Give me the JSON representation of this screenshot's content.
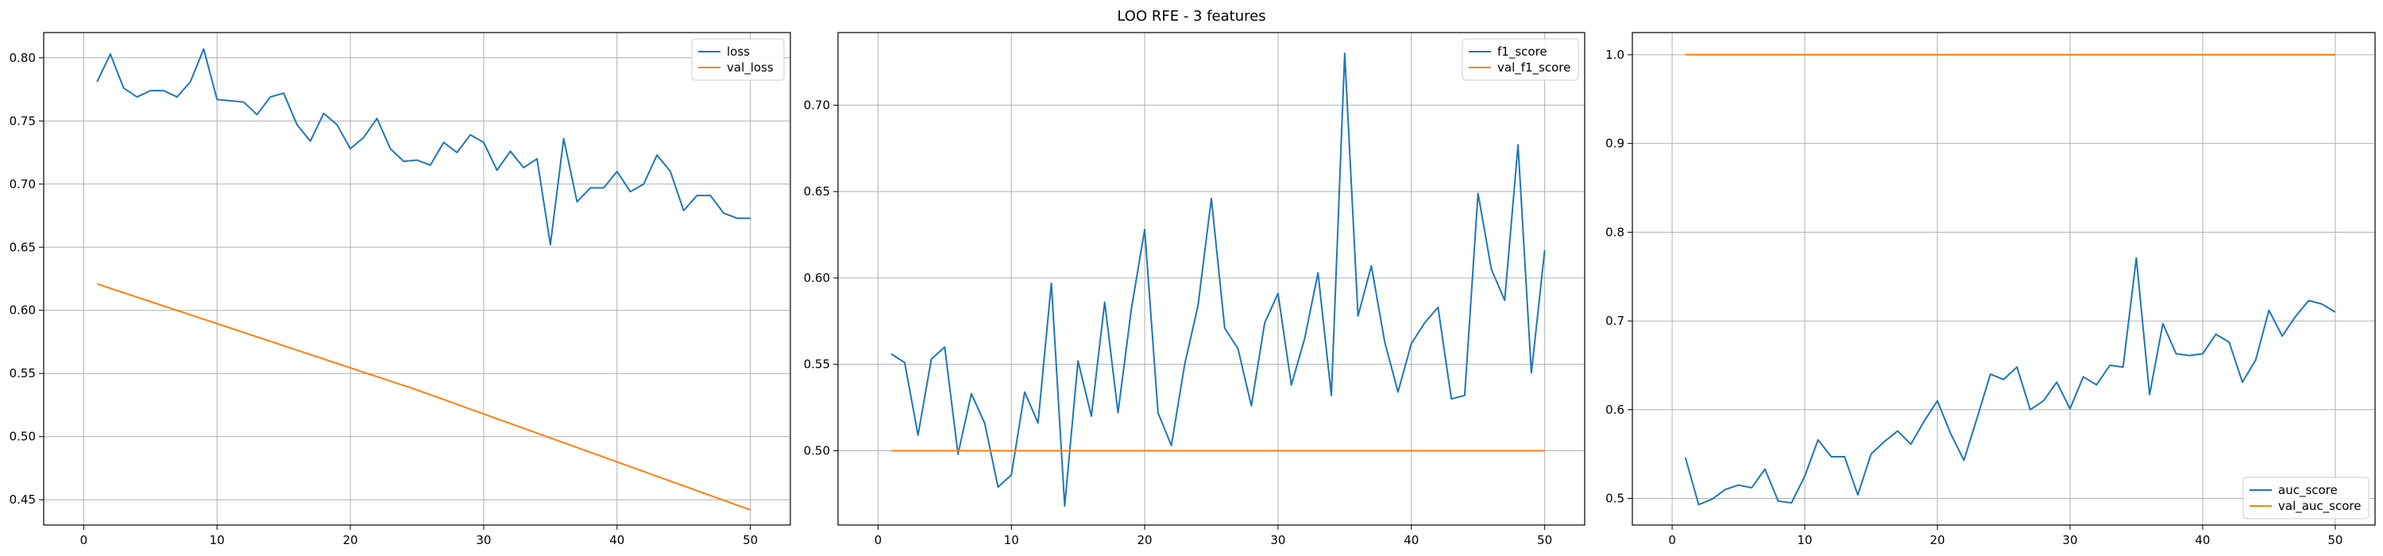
{
  "title": "LOO RFE - 3 features",
  "colors": {
    "train": "#1f77b4",
    "val": "#ff7f0e",
    "grid": "#b0b0b0"
  },
  "chart_data": [
    {
      "type": "line",
      "xlim": [
        -3,
        53
      ],
      "ylim": [
        0.43,
        0.82
      ],
      "xticks": [
        0,
        10,
        20,
        30,
        40,
        50
      ],
      "yticks": [
        0.45,
        0.5,
        0.55,
        0.6,
        0.65,
        0.7,
        0.75,
        0.8
      ],
      "grid": true,
      "legend_position": "upper right",
      "series": [
        {
          "name": "loss",
          "color": "#1f77b4",
          "x": [
            1,
            2,
            3,
            4,
            5,
            6,
            7,
            8,
            9,
            10,
            11,
            12,
            13,
            14,
            15,
            16,
            17,
            18,
            19,
            20,
            21,
            22,
            23,
            24,
            25,
            26,
            27,
            28,
            29,
            30,
            31,
            32,
            33,
            34,
            35,
            36,
            37,
            38,
            39,
            40,
            41,
            42,
            43,
            44,
            45,
            46,
            47,
            48,
            49,
            50
          ],
          "y": [
            0.781,
            0.803,
            0.776,
            0.769,
            0.774,
            0.774,
            0.769,
            0.781,
            0.807,
            0.767,
            0.766,
            0.765,
            0.755,
            0.769,
            0.772,
            0.747,
            0.734,
            0.756,
            0.747,
            0.728,
            0.737,
            0.752,
            0.728,
            0.718,
            0.719,
            0.715,
            0.733,
            0.725,
            0.739,
            0.733,
            0.711,
            0.726,
            0.713,
            0.72,
            0.652,
            0.736,
            0.686,
            0.697,
            0.697,
            0.71,
            0.694,
            0.7,
            0.723,
            0.71,
            0.679,
            0.691,
            0.691,
            0.677,
            0.673,
            0.673
          ]
        },
        {
          "name": "val_loss",
          "color": "#ff7f0e",
          "x": [
            1,
            2,
            3,
            4,
            5,
            6,
            7,
            8,
            9,
            10,
            11,
            12,
            13,
            14,
            15,
            16,
            17,
            18,
            19,
            20,
            21,
            22,
            23,
            24,
            25,
            26,
            27,
            28,
            29,
            30,
            31,
            32,
            33,
            34,
            35,
            36,
            37,
            38,
            39,
            40,
            41,
            42,
            43,
            44,
            45,
            46,
            47,
            48,
            49,
            50
          ],
          "y": [
            0.621,
            0.6175,
            0.614,
            0.6105,
            0.607,
            0.6035,
            0.6,
            0.5965,
            0.593,
            0.5895,
            0.586,
            0.5825,
            0.579,
            0.5755,
            0.572,
            0.5685,
            0.565,
            0.5615,
            0.558,
            0.5545,
            0.551,
            0.5475,
            0.544,
            0.5405,
            0.537,
            0.5332,
            0.5294,
            0.5256,
            0.5218,
            0.518,
            0.5142,
            0.5104,
            0.5066,
            0.5028,
            0.499,
            0.4952,
            0.4914,
            0.4876,
            0.4838,
            0.48,
            0.4762,
            0.4724,
            0.4686,
            0.4648,
            0.461,
            0.4572,
            0.4534,
            0.4496,
            0.4458,
            0.442
          ]
        }
      ]
    },
    {
      "type": "line",
      "xlim": [
        -3,
        53
      ],
      "ylim": [
        0.457,
        0.742
      ],
      "xticks": [
        0,
        10,
        20,
        30,
        40,
        50
      ],
      "yticks": [
        0.5,
        0.55,
        0.6,
        0.65,
        0.7
      ],
      "grid": true,
      "legend_position": "upper right",
      "series": [
        {
          "name": "f1_score",
          "color": "#1f77b4",
          "x": [
            1,
            2,
            3,
            4,
            5,
            6,
            7,
            8,
            9,
            10,
            11,
            12,
            13,
            14,
            15,
            16,
            17,
            18,
            19,
            20,
            21,
            22,
            23,
            24,
            25,
            26,
            27,
            28,
            29,
            30,
            31,
            32,
            33,
            34,
            35,
            36,
            37,
            38,
            39,
            40,
            41,
            42,
            43,
            44,
            45,
            46,
            47,
            48,
            49,
            50
          ],
          "y": [
            0.556,
            0.551,
            0.509,
            0.553,
            0.56,
            0.498,
            0.533,
            0.516,
            0.479,
            0.486,
            0.534,
            0.516,
            0.597,
            0.468,
            0.552,
            0.52,
            0.586,
            0.522,
            0.582,
            0.628,
            0.522,
            0.503,
            0.55,
            0.584,
            0.646,
            0.571,
            0.559,
            0.526,
            0.574,
            0.591,
            0.538,
            0.565,
            0.603,
            0.532,
            0.73,
            0.578,
            0.607,
            0.563,
            0.534,
            0.562,
            0.574,
            0.583,
            0.53,
            0.532,
            0.649,
            0.605,
            0.587,
            0.677,
            0.545,
            0.616
          ]
        },
        {
          "name": "val_f1_score",
          "color": "#ff7f0e",
          "x": [
            1,
            50
          ],
          "y": [
            0.5,
            0.5
          ]
        }
      ]
    },
    {
      "type": "line",
      "xlim": [
        -3,
        53
      ],
      "ylim": [
        0.47,
        1.025
      ],
      "xticks": [
        0,
        10,
        20,
        30,
        40,
        50
      ],
      "yticks": [
        0.5,
        0.6,
        0.7,
        0.8,
        0.9,
        1.0
      ],
      "grid": true,
      "legend_position": "lower right",
      "series": [
        {
          "name": "auc_score",
          "color": "#1f77b4",
          "x": [
            1,
            2,
            3,
            4,
            5,
            6,
            7,
            8,
            9,
            10,
            11,
            12,
            13,
            14,
            15,
            16,
            17,
            18,
            19,
            20,
            21,
            22,
            23,
            24,
            25,
            26,
            27,
            28,
            29,
            30,
            31,
            32,
            33,
            34,
            35,
            36,
            37,
            38,
            39,
            40,
            41,
            42,
            43,
            44,
            45,
            46,
            47,
            48,
            49,
            50
          ],
          "y": [
            0.546,
            0.493,
            0.499,
            0.51,
            0.515,
            0.512,
            0.533,
            0.497,
            0.495,
            0.525,
            0.566,
            0.547,
            0.547,
            0.504,
            0.55,
            0.564,
            0.576,
            0.561,
            0.587,
            0.61,
            0.573,
            0.543,
            0.591,
            0.64,
            0.634,
            0.648,
            0.6,
            0.61,
            0.631,
            0.601,
            0.637,
            0.628,
            0.65,
            0.648,
            0.771,
            0.617,
            0.697,
            0.663,
            0.661,
            0.663,
            0.685,
            0.676,
            0.631,
            0.656,
            0.712,
            0.683,
            0.705,
            0.723,
            0.719,
            0.71
          ]
        },
        {
          "name": "val_auc_score",
          "color": "#ff7f0e",
          "x": [
            1,
            50
          ],
          "y": [
            1.0,
            1.0
          ]
        }
      ]
    }
  ]
}
